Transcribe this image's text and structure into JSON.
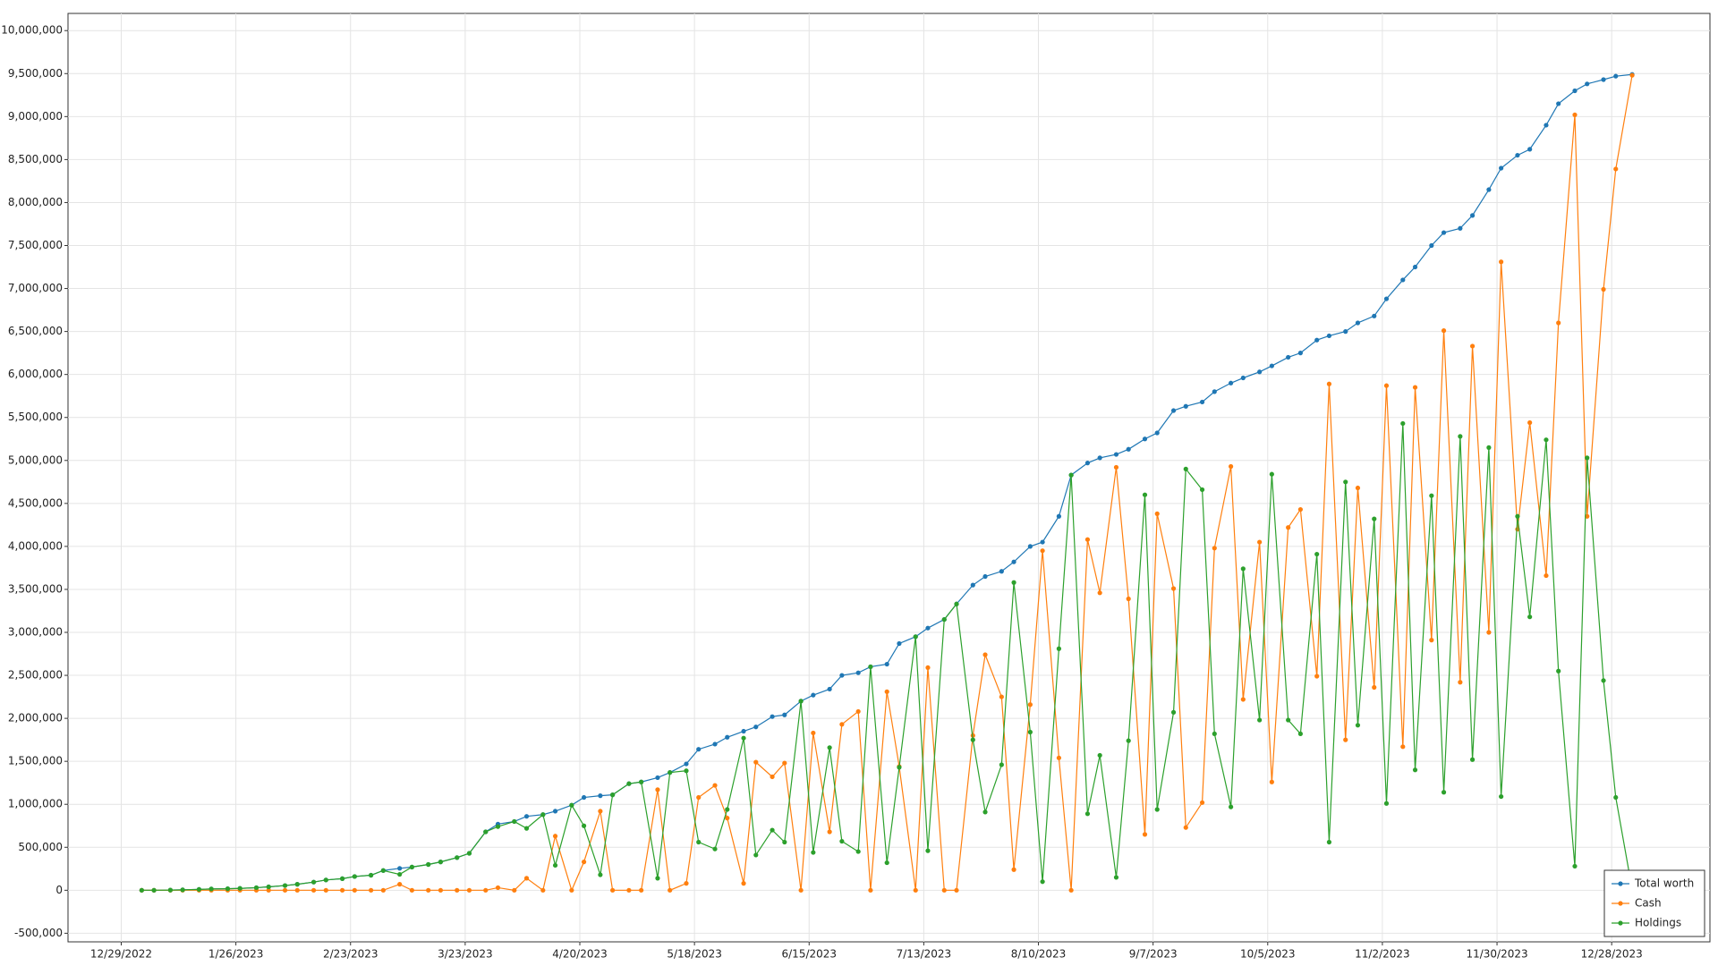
{
  "chart_data": {
    "type": "line",
    "x": [
      "2023-01-03",
      "2023-01-06",
      "2023-01-10",
      "2023-01-13",
      "2023-01-17",
      "2023-01-20",
      "2023-01-24",
      "2023-01-27",
      "2023-01-31",
      "2023-02-03",
      "2023-02-07",
      "2023-02-10",
      "2023-02-14",
      "2023-02-17",
      "2023-02-21",
      "2023-02-24",
      "2023-02-28",
      "2023-03-03",
      "2023-03-07",
      "2023-03-10",
      "2023-03-14",
      "2023-03-17",
      "2023-03-21",
      "2023-03-24",
      "2023-03-28",
      "2023-03-31",
      "2023-04-04",
      "2023-04-07",
      "2023-04-11",
      "2023-04-14",
      "2023-04-18",
      "2023-04-21",
      "2023-04-25",
      "2023-04-28",
      "2023-05-02",
      "2023-05-05",
      "2023-05-09",
      "2023-05-12",
      "2023-05-16",
      "2023-05-19",
      "2023-05-23",
      "2023-05-26",
      "2023-05-30",
      "2023-06-02",
      "2023-06-06",
      "2023-06-09",
      "2023-06-13",
      "2023-06-16",
      "2023-06-20",
      "2023-06-23",
      "2023-06-27",
      "2023-06-30",
      "2023-07-04",
      "2023-07-07",
      "2023-07-11",
      "2023-07-14",
      "2023-07-18",
      "2023-07-21",
      "2023-07-25",
      "2023-07-28",
      "2023-08-01",
      "2023-08-04",
      "2023-08-08",
      "2023-08-11",
      "2023-08-15",
      "2023-08-18",
      "2023-08-22",
      "2023-08-25",
      "2023-08-29",
      "2023-09-01",
      "2023-09-05",
      "2023-09-08",
      "2023-09-12",
      "2023-09-15",
      "2023-09-19",
      "2023-09-22",
      "2023-09-26",
      "2023-09-29",
      "2023-10-03",
      "2023-10-06",
      "2023-10-10",
      "2023-10-13",
      "2023-10-17",
      "2023-10-20",
      "2023-10-24",
      "2023-10-27",
      "2023-10-31",
      "2023-11-03",
      "2023-11-07",
      "2023-11-10",
      "2023-11-14",
      "2023-11-17",
      "2023-11-21",
      "2023-11-24",
      "2023-11-28",
      "2023-12-01",
      "2023-12-05",
      "2023-12-08",
      "2023-12-12",
      "2023-12-15",
      "2023-12-19",
      "2023-12-22",
      "2023-12-26",
      "2023-12-29",
      "2024-01-02"
    ],
    "series": [
      {
        "name": "Total worth",
        "color": "#1f77b4",
        "values": [
          0,
          0,
          2000,
          5000,
          10000,
          15000,
          18000,
          22000,
          30000,
          40000,
          55000,
          70000,
          95000,
          120000,
          135000,
          160000,
          175000,
          230000,
          255000,
          270000,
          300000,
          330000,
          380000,
          430000,
          680000,
          770000,
          800000,
          860000,
          880000,
          920000,
          990000,
          1080000,
          1100000,
          1110000,
          1240000,
          1260000,
          1310000,
          1370000,
          1470000,
          1640000,
          1700000,
          1780000,
          1850000,
          1900000,
          2020000,
          2040000,
          2200000,
          2270000,
          2340000,
          2500000,
          2530000,
          2600000,
          2630000,
          2870000,
          2950000,
          3050000,
          3150000,
          3330000,
          3550000,
          3650000,
          3710000,
          3820000,
          4000000,
          4050000,
          4350000,
          4830000,
          4970000,
          5030000,
          5070000,
          5130000,
          5250000,
          5320000,
          5580000,
          5630000,
          5680000,
          5800000,
          5900000,
          5960000,
          6030000,
          6100000,
          6200000,
          6250000,
          6400000,
          6450000,
          6500000,
          6600000,
          6680000,
          6880000,
          7100000,
          7250000,
          7500000,
          7650000,
          7700000,
          7850000,
          8150000,
          8400000,
          8550000,
          8620000,
          8900000,
          9150000,
          9300000,
          9380000,
          9430000,
          9470000,
          9490000
        ]
      },
      {
        "name": "Cash",
        "color": "#ff7f0e",
        "values": [
          0,
          0,
          0,
          0,
          0,
          0,
          0,
          0,
          0,
          0,
          0,
          0,
          0,
          0,
          0,
          0,
          0,
          0,
          70000,
          0,
          0,
          0,
          0,
          0,
          0,
          30000,
          0,
          140000,
          0,
          630000,
          0,
          330000,
          920000,
          0,
          0,
          0,
          1170000,
          0,
          80000,
          1080000,
          1220000,
          840000,
          80000,
          1490000,
          1320000,
          1480000,
          0,
          1830000,
          680000,
          1930000,
          2080000,
          0,
          2310000,
          1440000,
          0,
          2590000,
          0,
          0,
          1800000,
          2740000,
          2250000,
          240000,
          2160000,
          3950000,
          1540000,
          0,
          4080000,
          3460000,
          4920000,
          3390000,
          650000,
          4380000,
          3510000,
          730000,
          1020000,
          3980000,
          4930000,
          2220000,
          4050000,
          1260000,
          4220000,
          4430000,
          2490000,
          5890000,
          1750000,
          4680000,
          2360000,
          5870000,
          1670000,
          5850000,
          2910000,
          6510000,
          2420000,
          6330000,
          3000000,
          7310000,
          4200000,
          5440000,
          3660000,
          6600000,
          9020000,
          4350000,
          6990000,
          8390000,
          9480000
        ]
      },
      {
        "name": "Holdings",
        "color": "#2ca02c",
        "values": [
          0,
          0,
          2000,
          5000,
          10000,
          15000,
          18000,
          22000,
          30000,
          40000,
          55000,
          70000,
          95000,
          120000,
          135000,
          160000,
          175000,
          230000,
          185000,
          270000,
          300000,
          330000,
          380000,
          430000,
          680000,
          740000,
          800000,
          720000,
          880000,
          290000,
          990000,
          750000,
          180000,
          1110000,
          1240000,
          1260000,
          140000,
          1370000,
          1390000,
          560000,
          480000,
          940000,
          1770000,
          410000,
          700000,
          560000,
          2200000,
          440000,
          1660000,
          570000,
          450000,
          2600000,
          320000,
          1430000,
          2950000,
          460000,
          3150000,
          3330000,
          1750000,
          910000,
          1460000,
          3580000,
          1840000,
          100000,
          2810000,
          4830000,
          890000,
          1570000,
          150000,
          1740000,
          4600000,
          940000,
          2070000,
          4900000,
          4660000,
          1820000,
          970000,
          3740000,
          1980000,
          4840000,
          1980000,
          1820000,
          3910000,
          560000,
          4750000,
          1920000,
          4320000,
          1010000,
          5430000,
          1400000,
          4590000,
          1140000,
          5280000,
          1520000,
          5150000,
          1090000,
          4350000,
          3180000,
          5240000,
          2550000,
          280000,
          5030000,
          2440000,
          1080000,
          10000
        ]
      }
    ],
    "xlim": [
      "2022-12-16",
      "2024-01-21"
    ],
    "xticks": [
      {
        "value": "2022-12-29",
        "label": "12/29/2022"
      },
      {
        "value": "2023-01-26",
        "label": "1/26/2023"
      },
      {
        "value": "2023-02-23",
        "label": "2/23/2023"
      },
      {
        "value": "2023-03-23",
        "label": "3/23/2023"
      },
      {
        "value": "2023-04-20",
        "label": "4/20/2023"
      },
      {
        "value": "2023-05-18",
        "label": "5/18/2023"
      },
      {
        "value": "2023-06-15",
        "label": "6/15/2023"
      },
      {
        "value": "2023-07-13",
        "label": "7/13/2023"
      },
      {
        "value": "2023-08-10",
        "label": "8/10/2023"
      },
      {
        "value": "2023-09-07",
        "label": "9/7/2023"
      },
      {
        "value": "2023-10-05",
        "label": "10/5/2023"
      },
      {
        "value": "2023-11-02",
        "label": "11/2/2023"
      },
      {
        "value": "2023-11-30",
        "label": "11/30/2023"
      },
      {
        "value": "2023-12-28",
        "label": "12/28/2023"
      }
    ],
    "ylim": [
      -600000,
      10200000
    ],
    "yticks": [
      {
        "value": -500000,
        "label": "-500,000"
      },
      0,
      {
        "value": 500000,
        "label": "500,000"
      },
      {
        "value": 1000000,
        "label": "1,000,000"
      },
      {
        "value": 1500000,
        "label": "1,500,000"
      },
      {
        "value": 2000000,
        "label": "2,000,000"
      },
      {
        "value": 2500000,
        "label": "2,500,000"
      },
      {
        "value": 3000000,
        "label": "3,000,000"
      },
      {
        "value": 3500000,
        "label": "3,500,000"
      },
      {
        "value": 4000000,
        "label": "4,000,000"
      },
      {
        "value": 4500000,
        "label": "4,500,000"
      },
      {
        "value": 5000000,
        "label": "5,000,000"
      },
      {
        "value": 5500000,
        "label": "5,500,000"
      },
      {
        "value": 6000000,
        "label": "6,000,000"
      },
      {
        "value": 6500000,
        "label": "6,500,000"
      },
      {
        "value": 7000000,
        "label": "7,000,000"
      },
      {
        "value": 7500000,
        "label": "7,500,000"
      },
      {
        "value": 8000000,
        "label": "8,000,000"
      },
      {
        "value": 8500000,
        "label": "8,500,000"
      },
      {
        "value": 9000000,
        "label": "9,000,000"
      },
      {
        "value": 9500000,
        "label": "9,500,000"
      },
      {
        "value": 10000000,
        "label": "10,000,000"
      }
    ],
    "grid": true,
    "legend": "lower right",
    "markers": true
  }
}
